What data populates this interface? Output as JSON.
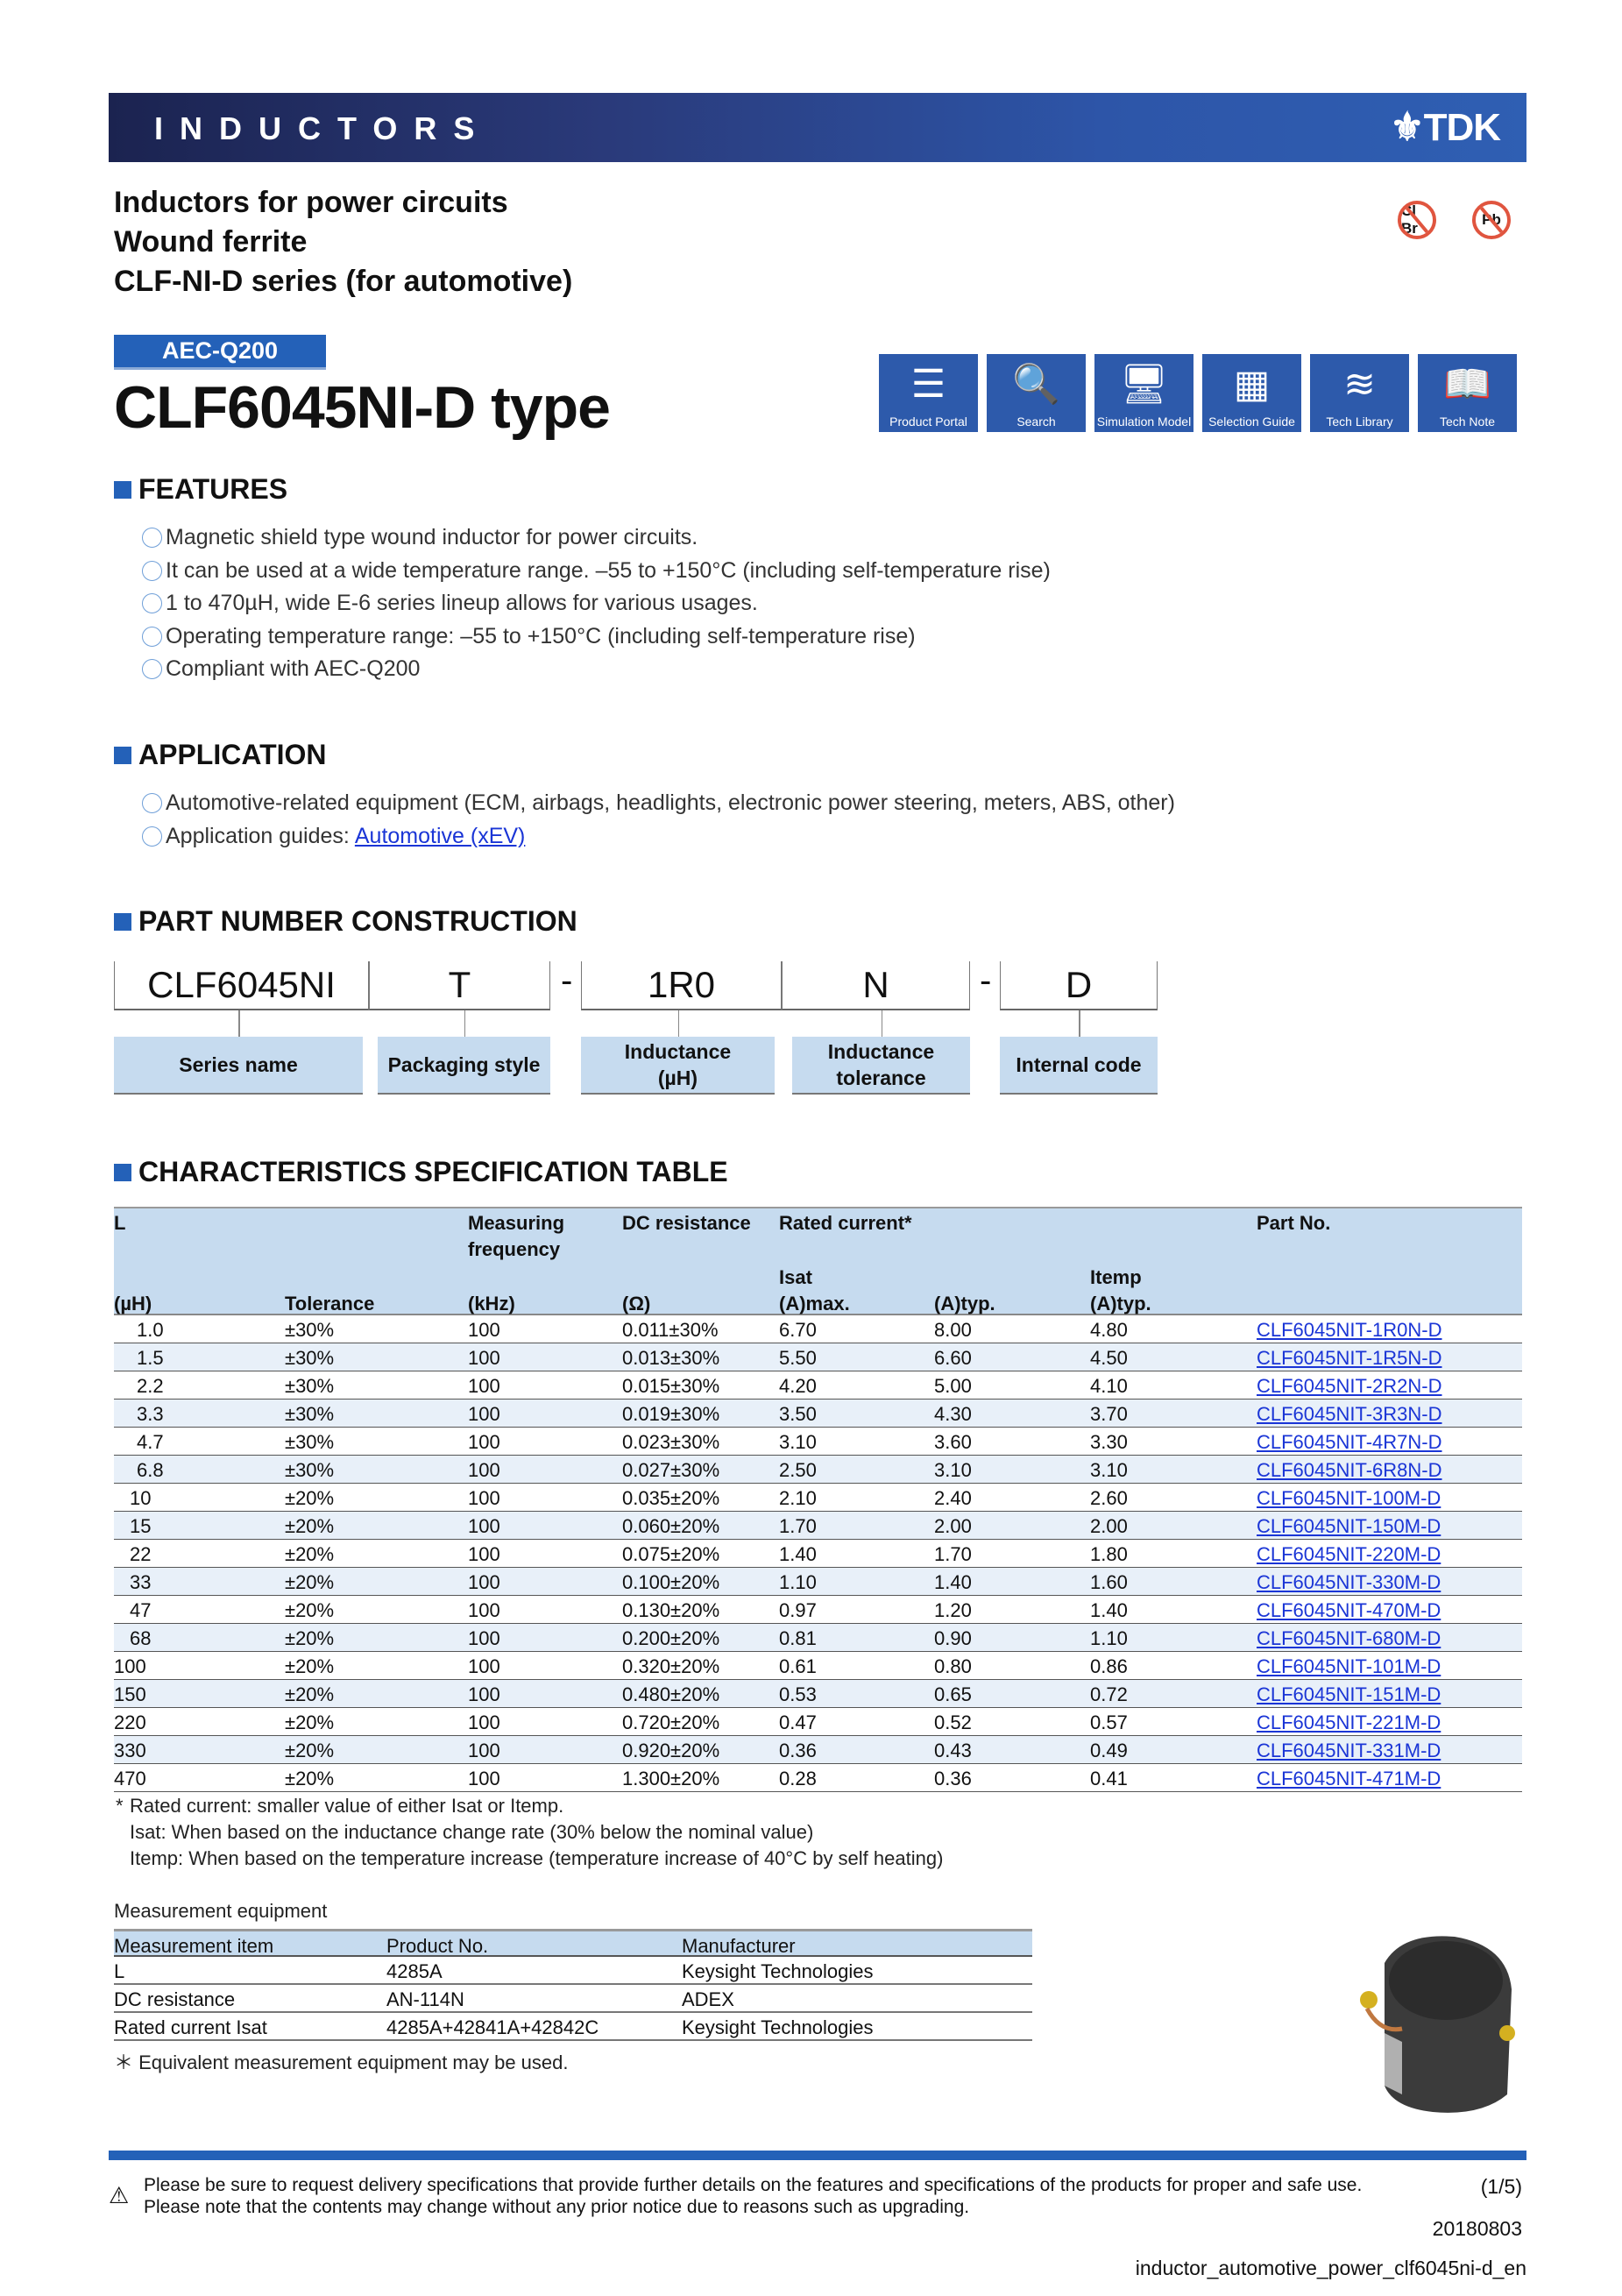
{
  "header": {
    "banner_title": "INDUCTORS",
    "logo": "TDK"
  },
  "subtitles": [
    "Inductors for power circuits",
    "Wound ferrite",
    "CLF-NI-D series (for automotive)"
  ],
  "env_icons": [
    {
      "icon": "halogen-free-icon",
      "label": "Cl Br"
    },
    {
      "icon": "lead-free-icon",
      "label": "Pb"
    }
  ],
  "badge": "AEC-Q200",
  "title": "CLF6045NI-D type",
  "nav": [
    {
      "label": "Product Portal",
      "icon": "☰"
    },
    {
      "label": "Search",
      "icon": "🔍"
    },
    {
      "label": "Simulation Model",
      "icon": "🖥"
    },
    {
      "label": "Selection Guide",
      "icon": "▦"
    },
    {
      "label": "Tech Library",
      "icon": "≋"
    },
    {
      "label": "Tech Note",
      "icon": "📖"
    }
  ],
  "features": {
    "heading": "FEATURES",
    "items": [
      "Magnetic shield type wound inductor for power circuits.",
      "It can be used at a wide temperature range. –55 to +150°C (including self-temperature rise)",
      "1 to 470µH, wide E-6 series lineup allows for various usages.",
      "Operating temperature range: –55 to +150°C (including self-temperature rise)",
      "Compliant with AEC-Q200"
    ]
  },
  "application": {
    "heading": "APPLICATION",
    "items": [
      "Automotive-related equipment (ECM, airbags, headlights, electronic power steering, meters, ABS, other)"
    ],
    "guide_label": "Application guides:",
    "guide_link": "Automotive (xEV)"
  },
  "part_number": {
    "heading": "PART NUMBER CONSTRUCTION",
    "segments": [
      "CLF6045NI",
      "T",
      "1R0",
      "N",
      "D"
    ],
    "separator": "-",
    "labels": [
      "Series name",
      "Packaging style",
      "Inductance\n(µH)",
      "Inductance\ntolerance",
      "Internal code"
    ]
  },
  "spec_table": {
    "heading": "CHARACTERISTICS SPECIFICATION TABLE",
    "headers": {
      "l": "L",
      "freq1": "Measuring",
      "freq2": "frequency",
      "dcr": "DC resistance",
      "rated": "Rated current*",
      "part": "Part No.",
      "isat": "Isat",
      "itemp": "Itemp",
      "u_l": "(µH)",
      "u_tol": "Tolerance",
      "u_freq": "(kHz)",
      "u_dcr": "(Ω)",
      "u_isat": "(A)max.",
      "u_isat_typ": "(A)typ.",
      "u_itemp": "(A)typ."
    },
    "rows": [
      [
        "1.0",
        "±30%",
        "100",
        "0.011±30%",
        "6.70",
        "8.00",
        "4.80",
        "CLF6045NIT-1R0N-D"
      ],
      [
        "1.5",
        "±30%",
        "100",
        "0.013±30%",
        "5.50",
        "6.60",
        "4.50",
        "CLF6045NIT-1R5N-D"
      ],
      [
        "2.2",
        "±30%",
        "100",
        "0.015±30%",
        "4.20",
        "5.00",
        "4.10",
        "CLF6045NIT-2R2N-D"
      ],
      [
        "3.3",
        "±30%",
        "100",
        "0.019±30%",
        "3.50",
        "4.30",
        "3.70",
        "CLF6045NIT-3R3N-D"
      ],
      [
        "4.7",
        "±30%",
        "100",
        "0.023±30%",
        "3.10",
        "3.60",
        "3.30",
        "CLF6045NIT-4R7N-D"
      ],
      [
        "6.8",
        "±30%",
        "100",
        "0.027±30%",
        "2.50",
        "3.10",
        "3.10",
        "CLF6045NIT-6R8N-D"
      ],
      [
        "10",
        "±20%",
        "100",
        "0.035±20%",
        "2.10",
        "2.40",
        "2.60",
        "CLF6045NIT-100M-D"
      ],
      [
        "15",
        "±20%",
        "100",
        "0.060±20%",
        "1.70",
        "2.00",
        "2.00",
        "CLF6045NIT-150M-D"
      ],
      [
        "22",
        "±20%",
        "100",
        "0.075±20%",
        "1.40",
        "1.70",
        "1.80",
        "CLF6045NIT-220M-D"
      ],
      [
        "33",
        "±20%",
        "100",
        "0.100±20%",
        "1.10",
        "1.40",
        "1.60",
        "CLF6045NIT-330M-D"
      ],
      [
        "47",
        "±20%",
        "100",
        "0.130±20%",
        "0.97",
        "1.20",
        "1.40",
        "CLF6045NIT-470M-D"
      ],
      [
        "68",
        "±20%",
        "100",
        "0.200±20%",
        "0.81",
        "0.90",
        "1.10",
        "CLF6045NIT-680M-D"
      ],
      [
        "100",
        "±20%",
        "100",
        "0.320±20%",
        "0.61",
        "0.80",
        "0.86",
        "CLF6045NIT-101M-D"
      ],
      [
        "150",
        "±20%",
        "100",
        "0.480±20%",
        "0.53",
        "0.65",
        "0.72",
        "CLF6045NIT-151M-D"
      ],
      [
        "220",
        "±20%",
        "100",
        "0.720±20%",
        "0.47",
        "0.52",
        "0.57",
        "CLF6045NIT-221M-D"
      ],
      [
        "330",
        "±20%",
        "100",
        "0.920±20%",
        "0.36",
        "0.43",
        "0.49",
        "CLF6045NIT-331M-D"
      ],
      [
        "470",
        "±20%",
        "100",
        "1.300±20%",
        "0.28",
        "0.36",
        "0.41",
        "CLF6045NIT-471M-D"
      ]
    ],
    "footnotes": [
      "Rated current: smaller value of either Isat or Itemp.",
      "Isat: When based on the inductance change rate (30% below the nominal value)",
      "Itemp: When based on the temperature increase (temperature increase of 40°C by self heating)"
    ],
    "footnote_mark": "*"
  },
  "measurement": {
    "title": "Measurement equipment",
    "headers": [
      "Measurement item",
      "Product No.",
      "Manufacturer"
    ],
    "rows": [
      [
        "L",
        "4285A",
        "Keysight Technologies"
      ],
      [
        "DC resistance",
        "AN-114N",
        "ADEX"
      ],
      [
        "Rated current Isat",
        "4285A+42841A+42842C",
        "Keysight Technologies"
      ]
    ],
    "note": "＊ Equivalent measurement equipment may be used."
  },
  "footer": {
    "line1": "Please be sure to request delivery specifications that provide further details on the features and specifications of the products for proper and safe use.",
    "line2": "Please note that the contents may change without any prior notice due to reasons such as upgrading.",
    "page": "(1/5)",
    "date": "20180803",
    "doc_id": "inductor_automotive_power_clf6045ni-d_en"
  },
  "colors": {
    "accent": "#2461b8",
    "table_header": "#c6dbef",
    "row_alt": "#e8f0f9",
    "link": "#1a35d6"
  }
}
